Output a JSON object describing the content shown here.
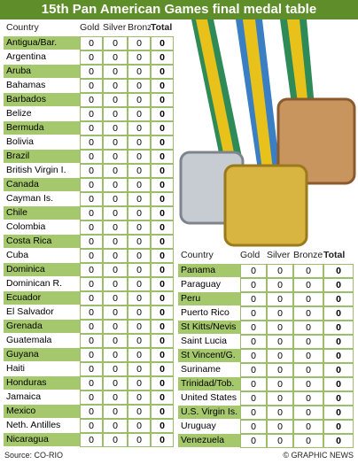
{
  "header": {
    "title": "15th Pan American Games final medal table"
  },
  "left_table": {
    "columns": [
      "Country",
      "Gold",
      "Silver",
      "Bronze",
      "Total"
    ],
    "rows": [
      [
        "Antigua/Bar.",
        0,
        0,
        0,
        0
      ],
      [
        "Argentina",
        0,
        0,
        0,
        0
      ],
      [
        "Aruba",
        0,
        0,
        0,
        0
      ],
      [
        "Bahamas",
        0,
        0,
        0,
        0
      ],
      [
        "Barbados",
        0,
        0,
        0,
        0
      ],
      [
        "Belize",
        0,
        0,
        0,
        0
      ],
      [
        "Bermuda",
        0,
        0,
        0,
        0
      ],
      [
        "Bolivia",
        0,
        0,
        0,
        0
      ],
      [
        "Brazil",
        0,
        0,
        0,
        0
      ],
      [
        "British Virgin I.",
        0,
        0,
        0,
        0
      ],
      [
        "Canada",
        0,
        0,
        0,
        0
      ],
      [
        "Cayman Is.",
        0,
        0,
        0,
        0
      ],
      [
        "Chile",
        0,
        0,
        0,
        0
      ],
      [
        "Colombia",
        0,
        0,
        0,
        0
      ],
      [
        "Costa Rica",
        0,
        0,
        0,
        0
      ],
      [
        "Cuba",
        0,
        0,
        0,
        0
      ],
      [
        "Dominica",
        0,
        0,
        0,
        0
      ],
      [
        "Dominican R.",
        0,
        0,
        0,
        0
      ],
      [
        "Ecuador",
        0,
        0,
        0,
        0
      ],
      [
        "El Salvador",
        0,
        0,
        0,
        0
      ],
      [
        "Grenada",
        0,
        0,
        0,
        0
      ],
      [
        "Guatemala",
        0,
        0,
        0,
        0
      ],
      [
        "Guyana",
        0,
        0,
        0,
        0
      ],
      [
        "Haiti",
        0,
        0,
        0,
        0
      ],
      [
        "Honduras",
        0,
        0,
        0,
        0
      ],
      [
        "Jamaica",
        0,
        0,
        0,
        0
      ],
      [
        "Mexico",
        0,
        0,
        0,
        0
      ],
      [
        "Neth. Antilles",
        0,
        0,
        0,
        0
      ],
      [
        "Nicaragua",
        0,
        0,
        0,
        0
      ]
    ]
  },
  "right_table": {
    "columns": [
      "Country",
      "Gold",
      "Silver",
      "Bronze",
      "Total"
    ],
    "rows": [
      [
        "Panama",
        0,
        0,
        0,
        0
      ],
      [
        "Paraguay",
        0,
        0,
        0,
        0
      ],
      [
        "Peru",
        0,
        0,
        0,
        0
      ],
      [
        "Puerto Rico",
        0,
        0,
        0,
        0
      ],
      [
        "St Kitts/Nevis",
        0,
        0,
        0,
        0
      ],
      [
        "Saint Lucia",
        0,
        0,
        0,
        0
      ],
      [
        "St Vincent/G.",
        0,
        0,
        0,
        0
      ],
      [
        "Suriname",
        0,
        0,
        0,
        0
      ],
      [
        "Trinidad/Tob.",
        0,
        0,
        0,
        0
      ],
      [
        "United States",
        0,
        0,
        0,
        0
      ],
      [
        "U.S. Virgin Is.",
        0,
        0,
        0,
        0
      ],
      [
        "Uruguay",
        0,
        0,
        0,
        0
      ],
      [
        "Venezuela",
        0,
        0,
        0,
        0
      ]
    ]
  },
  "footer": {
    "source": "Source: CO-RIO",
    "credit": "© GRAPHIC NEWS"
  }
}
